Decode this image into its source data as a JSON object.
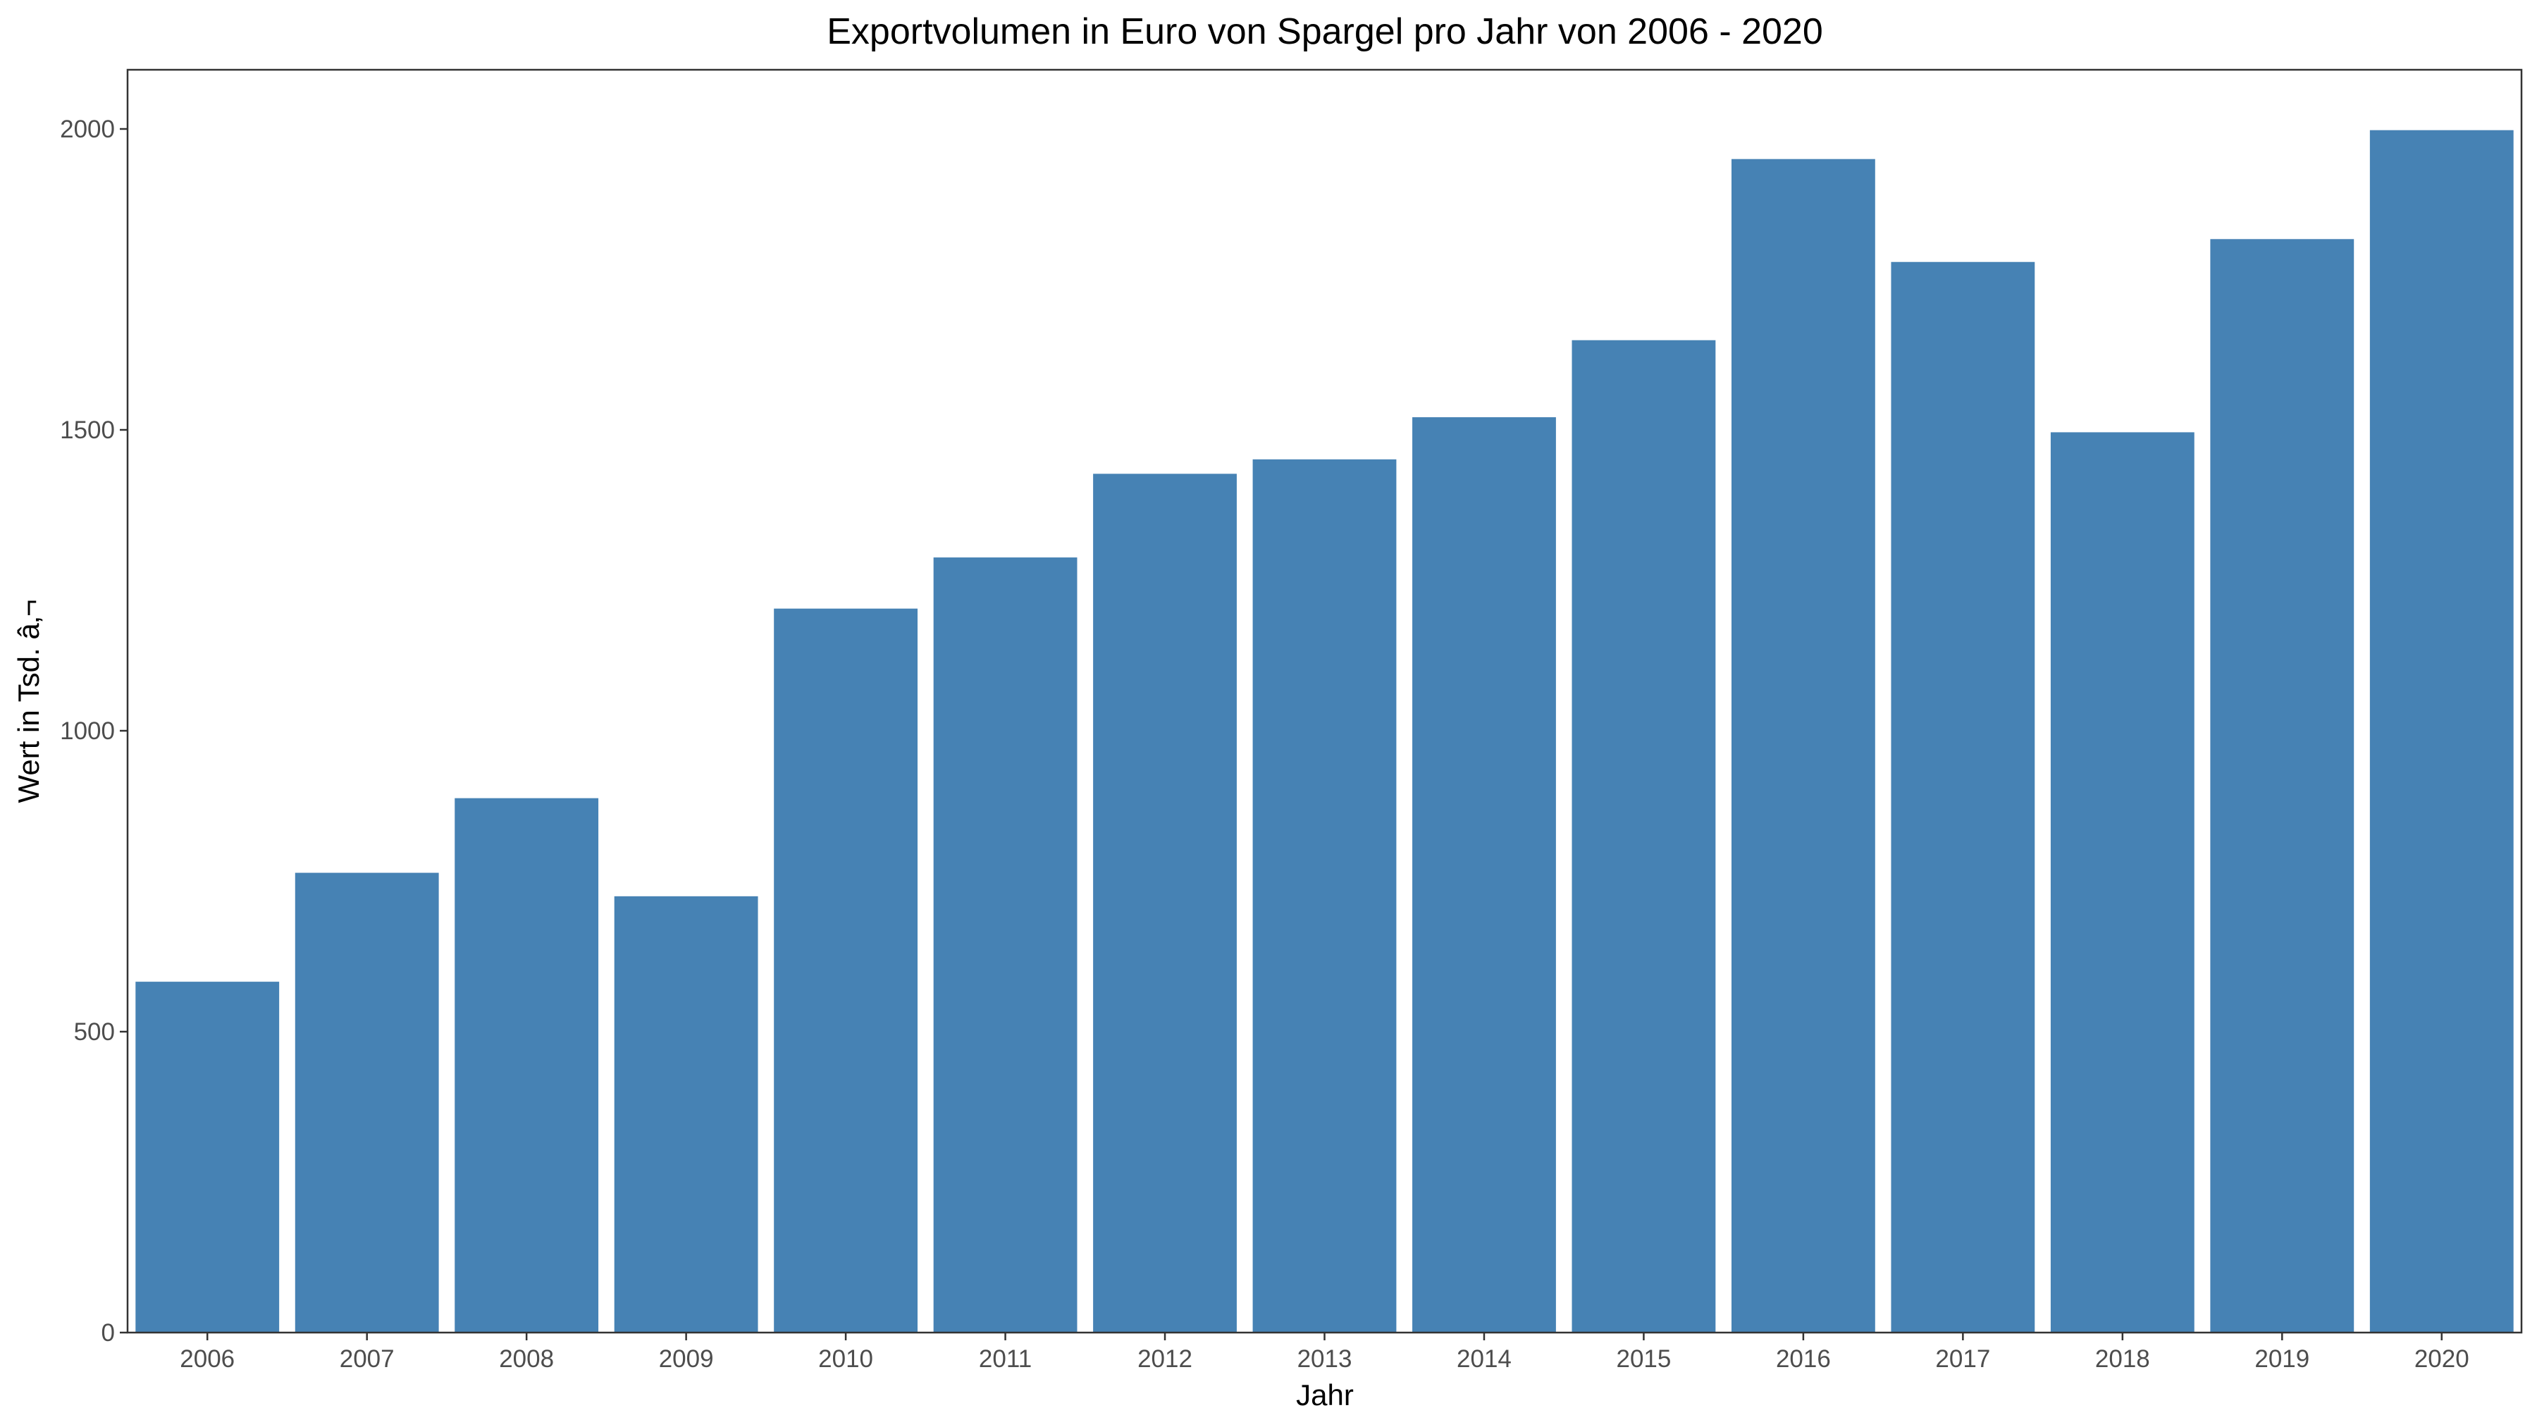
{
  "chart_data": {
    "type": "bar",
    "title": "Exportvolumen in Euro von Spargel pro Jahr von 2006 - 2020",
    "xlabel": "Jahr",
    "ylabel": "Wert in Tsd. â‚¬",
    "categories": [
      "2006",
      "2007",
      "2008",
      "2009",
      "2010",
      "2011",
      "2012",
      "2013",
      "2014",
      "2015",
      "2016",
      "2017",
      "2018",
      "2019",
      "2020"
    ],
    "values": [
      583,
      764,
      888,
      725,
      1203,
      1288,
      1427,
      1451,
      1521,
      1649,
      1950,
      1779,
      1496,
      1817,
      1998
    ],
    "ylim": [
      0,
      2100
    ],
    "yticks": [
      0,
      500,
      1000,
      1500,
      2000
    ],
    "bar_color": "#4682B4",
    "grid": false,
    "legend": "none"
  }
}
